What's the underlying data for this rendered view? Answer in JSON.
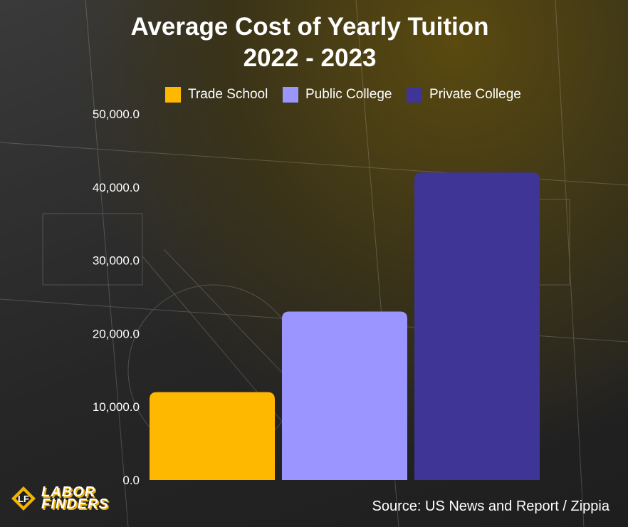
{
  "chart_data": {
    "type": "bar",
    "title": "Average Cost of Yearly Tuition 2022 - 2023",
    "categories": [
      "Trade School",
      "Public College",
      "Private College"
    ],
    "values": [
      12000,
      23000,
      42000
    ],
    "colors": [
      "#FFB800",
      "#9B96FF",
      "#3F3596"
    ],
    "ylim": [
      0,
      50000
    ],
    "yticks": [
      "0.0",
      "10,000.0",
      "20,000.0",
      "30,000.0",
      "40,000.0",
      "50,000.0"
    ],
    "xlabel": "",
    "ylabel": "",
    "grid": false,
    "legend_position": "top"
  },
  "legend": [
    {
      "label": "Trade School",
      "color": "#FFB800"
    },
    {
      "label": "Public College",
      "color": "#9B96FF"
    },
    {
      "label": "Private College",
      "color": "#3F3596"
    }
  ],
  "logo": {
    "line1": "LABOR",
    "line2": "FINDERS",
    "icon": "labor-finders-logo-icon"
  },
  "source": "Source: US News and Report / Zippia"
}
